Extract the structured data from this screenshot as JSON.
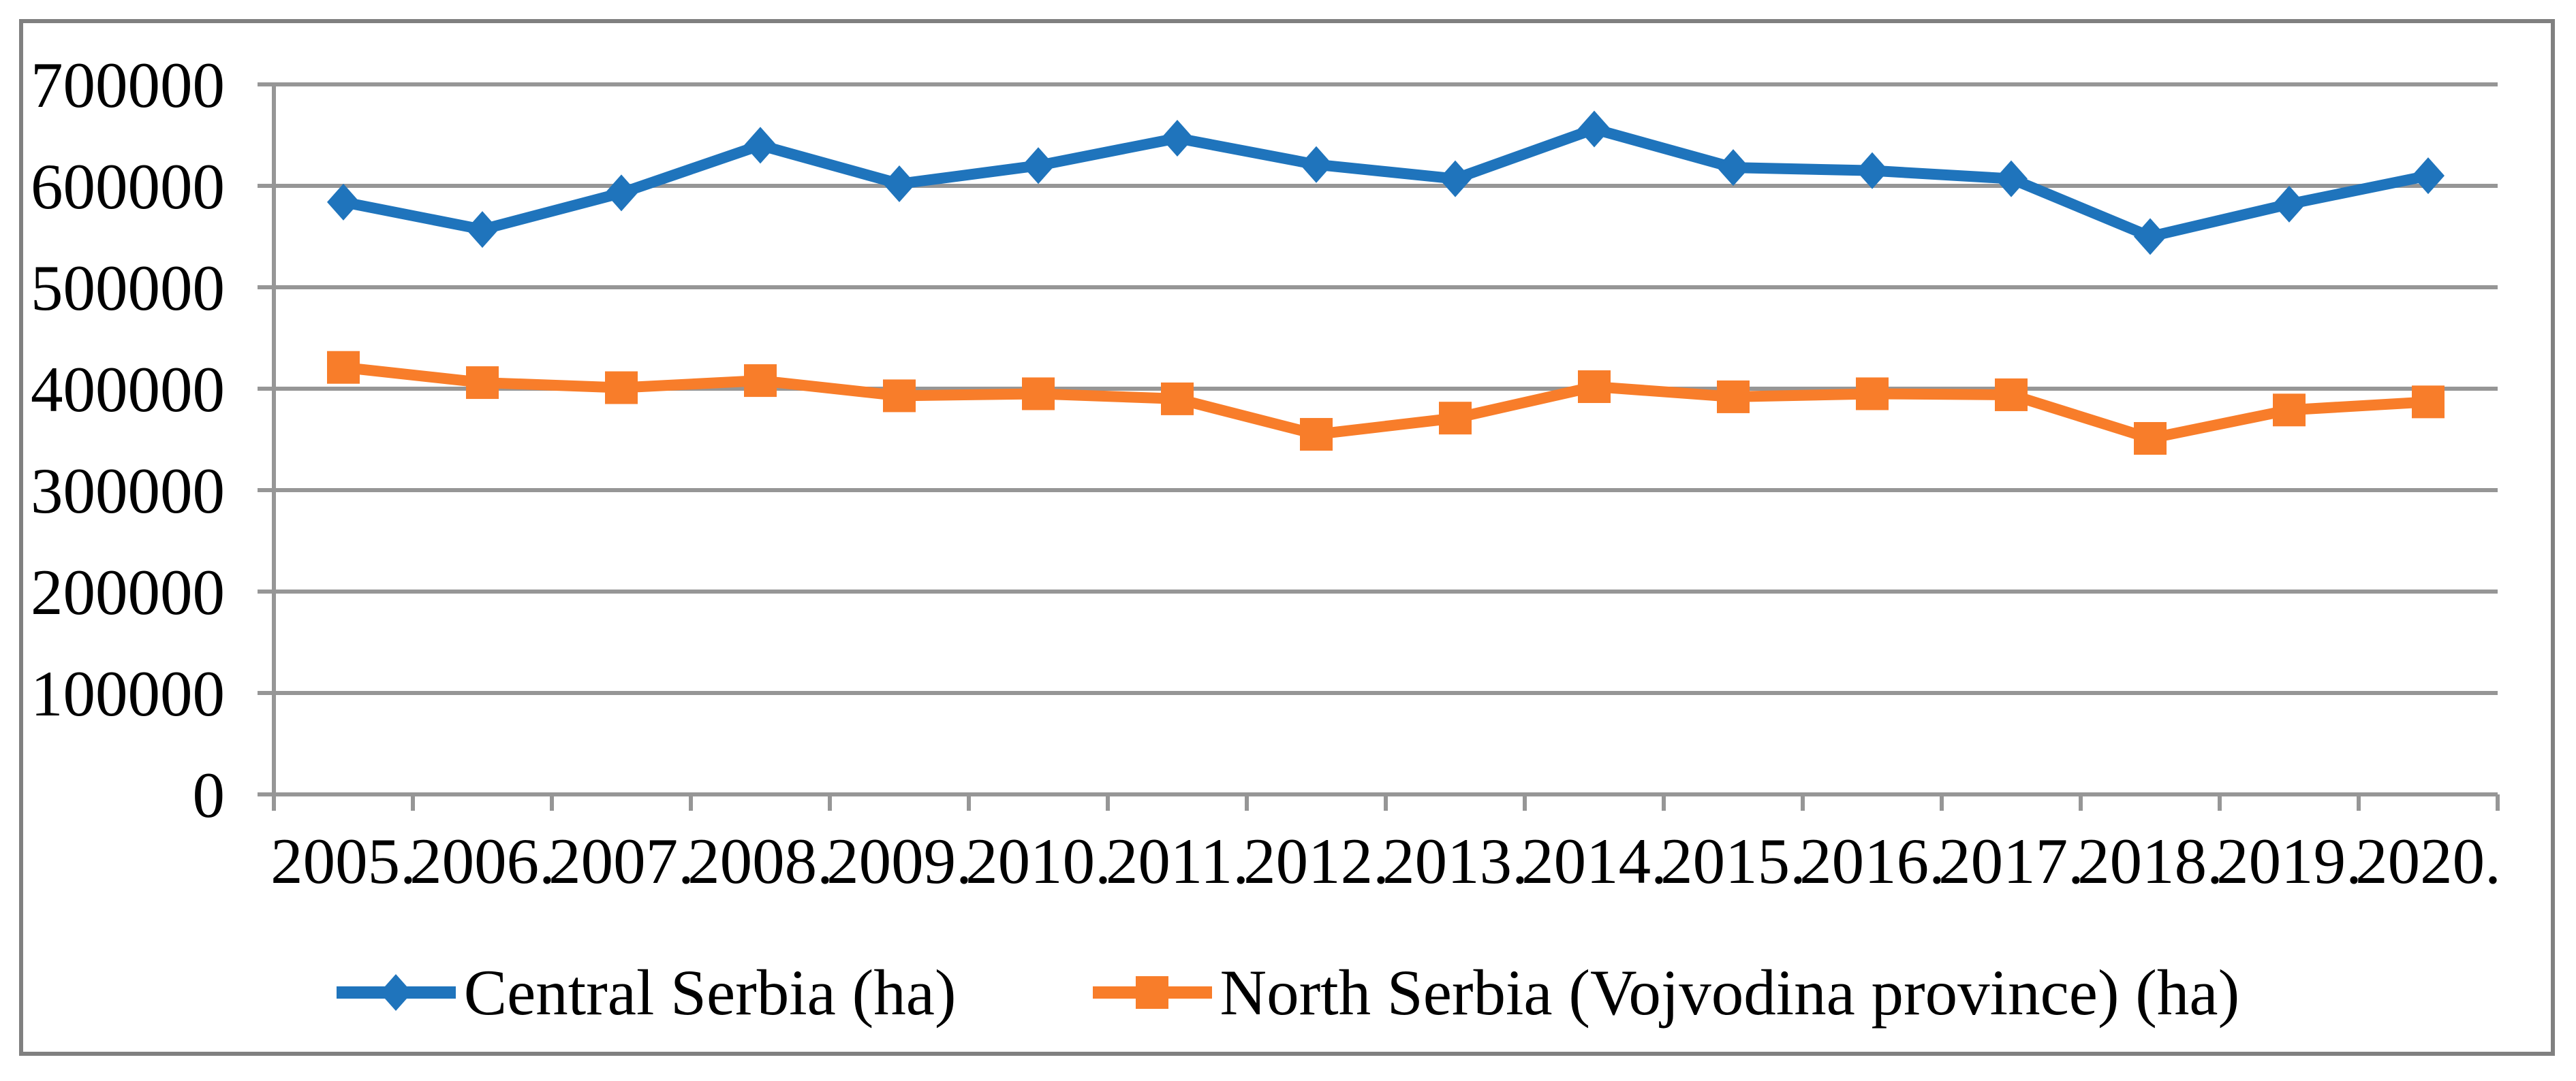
{
  "chart_data": {
    "type": "line",
    "title": "",
    "xlabel": "",
    "ylabel": "",
    "categories": [
      "2005.",
      "2006.",
      "2007.",
      "2008.",
      "2009.",
      "2010.",
      "2011.",
      "2012.",
      "2013.",
      "2014.",
      "2015.",
      "2016.",
      "2017.",
      "2018.",
      "2019.",
      "2020."
    ],
    "y_axis": {
      "min": 0,
      "max": 700000,
      "step": 100000,
      "tick_labels": [
        "0",
        "100000",
        "200000",
        "300000",
        "400000",
        "500000",
        "600000",
        "700000"
      ]
    },
    "series": [
      {
        "name": "Central Serbia (ha)",
        "color": "#1F74BC",
        "marker": "diamond",
        "values": [
          584000,
          557000,
          593000,
          640000,
          602000,
          620000,
          647000,
          621000,
          607000,
          656000,
          618000,
          615000,
          607000,
          550000,
          582000,
          610000
        ]
      },
      {
        "name": "North Serbia (Vojvodina province) (ha)",
        "color": "#F87D2A",
        "marker": "square",
        "values": [
          421000,
          406000,
          401000,
          408000,
          393000,
          395000,
          390000,
          355000,
          371000,
          402000,
          392000,
          395000,
          394000,
          351000,
          379000,
          387000
        ]
      }
    ],
    "grid": true,
    "legend_position": "bottom",
    "colors": {
      "gridline": "#969696",
      "frame_border": "#808080",
      "text": "#000000",
      "background": "#FFFFFF"
    }
  }
}
